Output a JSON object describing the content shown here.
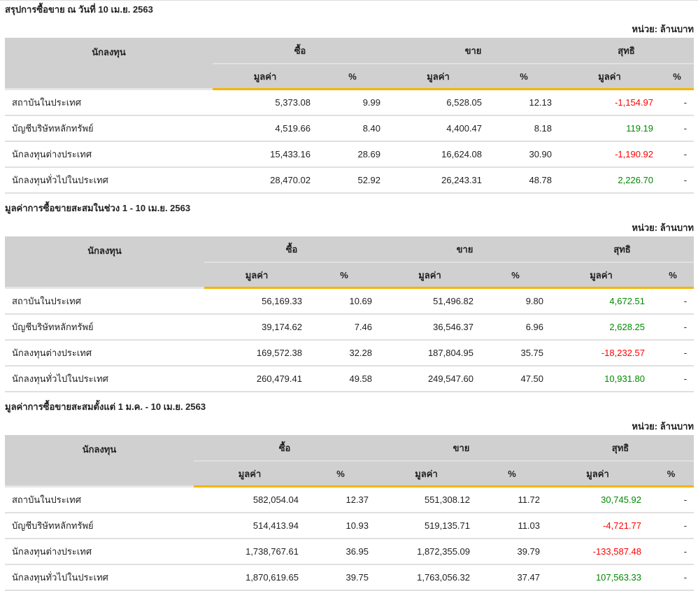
{
  "colors": {
    "negative": "#ff0000",
    "positive": "#008a00",
    "accent": "#f5b400",
    "header_bg": "#d0d0d0"
  },
  "headers": {
    "investor": "นักลงทุน",
    "buy": "ซื้อ",
    "sell": "ขาย",
    "net": "สุทธิ",
    "value": "มูลค่า",
    "pct": "%"
  },
  "unit": "หน่วย: ล้านบาท",
  "sections": [
    {
      "title": "สรุปการซื้อขาย ณ วันที่ 10 เม.ย. 2563",
      "rows": [
        {
          "name": "สถาบันในประเทศ",
          "buy": "5,373.08",
          "buy_pct": "9.99",
          "sell": "6,528.05",
          "sell_pct": "12.13",
          "net": "-1,154.97",
          "net_pct": "-"
        },
        {
          "name": "บัญชีบริษัทหลักทรัพย์",
          "buy": "4,519.66",
          "buy_pct": "8.40",
          "sell": "4,400.47",
          "sell_pct": "8.18",
          "net": "119.19",
          "net_pct": "-"
        },
        {
          "name": "นักลงทุนต่างประเทศ",
          "buy": "15,433.16",
          "buy_pct": "28.69",
          "sell": "16,624.08",
          "sell_pct": "30.90",
          "net": "-1,190.92",
          "net_pct": "-"
        },
        {
          "name": "นักลงทุนทั่วไปในประเทศ",
          "buy": "28,470.02",
          "buy_pct": "52.92",
          "sell": "26,243.31",
          "sell_pct": "48.78",
          "net": "2,226.70",
          "net_pct": "-"
        }
      ]
    },
    {
      "title": "มูลค่าการซื้อขายสะสมในช่วง 1 - 10 เม.ย. 2563",
      "rows": [
        {
          "name": "สถาบันในประเทศ",
          "buy": "56,169.33",
          "buy_pct": "10.69",
          "sell": "51,496.82",
          "sell_pct": "9.80",
          "net": "4,672.51",
          "net_pct": "-"
        },
        {
          "name": "บัญชีบริษัทหลักทรัพย์",
          "buy": "39,174.62",
          "buy_pct": "7.46",
          "sell": "36,546.37",
          "sell_pct": "6.96",
          "net": "2,628.25",
          "net_pct": "-"
        },
        {
          "name": "นักลงทุนต่างประเทศ",
          "buy": "169,572.38",
          "buy_pct": "32.28",
          "sell": "187,804.95",
          "sell_pct": "35.75",
          "net": "-18,232.57",
          "net_pct": "-"
        },
        {
          "name": "นักลงทุนทั่วไปในประเทศ",
          "buy": "260,479.41",
          "buy_pct": "49.58",
          "sell": "249,547.60",
          "sell_pct": "47.50",
          "net": "10,931.80",
          "net_pct": "-"
        }
      ]
    },
    {
      "title": "มูลค่าการซื้อขายสะสมตั้งแต่ 1 ม.ค. - 10 เม.ย. 2563",
      "rows": [
        {
          "name": "สถาบันในประเทศ",
          "buy": "582,054.04",
          "buy_pct": "12.37",
          "sell": "551,308.12",
          "sell_pct": "11.72",
          "net": "30,745.92",
          "net_pct": "-"
        },
        {
          "name": "บัญชีบริษัทหลักทรัพย์",
          "buy": "514,413.94",
          "buy_pct": "10.93",
          "sell": "519,135.71",
          "sell_pct": "11.03",
          "net": "-4,721.77",
          "net_pct": "-"
        },
        {
          "name": "นักลงทุนต่างประเทศ",
          "buy": "1,738,767.61",
          "buy_pct": "36.95",
          "sell": "1,872,355.09",
          "sell_pct": "39.79",
          "net": "-133,587.48",
          "net_pct": "-"
        },
        {
          "name": "นักลงทุนทั่วไปในประเทศ",
          "buy": "1,870,619.65",
          "buy_pct": "39.75",
          "sell": "1,763,056.32",
          "sell_pct": "37.47",
          "net": "107,563.33",
          "net_pct": "-"
        }
      ]
    }
  ]
}
